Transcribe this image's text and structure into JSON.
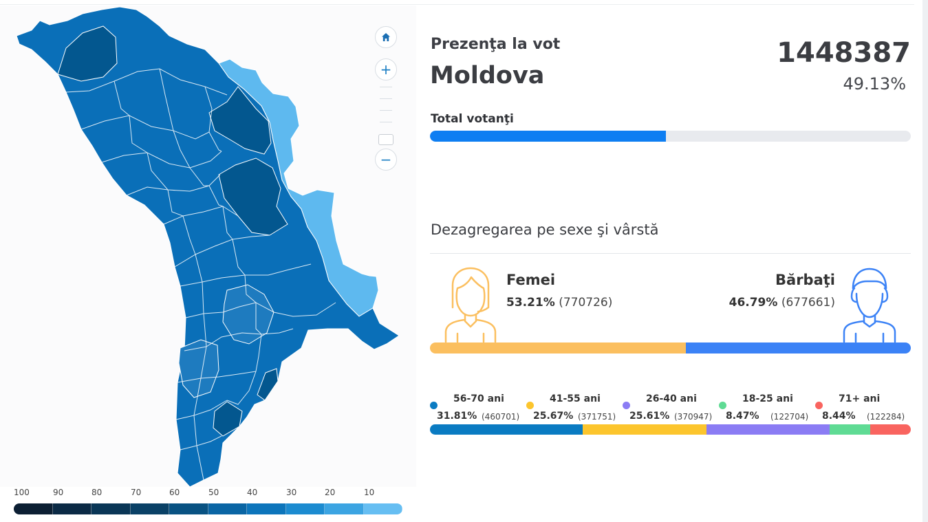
{
  "colors": {
    "accent_blue": "#0e7ef2",
    "female": "#fbbf5f",
    "male": "#3b82f6",
    "map_dark": "#03578f",
    "map_medium": "#0a6fb8",
    "map_light": "#1e7bbf",
    "map_lightest": "#5eb9ef"
  },
  "map": {
    "controls": {
      "home_icon": "home-icon",
      "zoom_in_label": "+",
      "zoom_out_label": "−"
    },
    "legend": {
      "labels": [
        "100",
        "90",
        "80",
        "70",
        "60",
        "50",
        "40",
        "30",
        "20",
        "10"
      ],
      "colors": [
        "#0c1f33",
        "#0b2a45",
        "#0a3656",
        "#0a4166",
        "#095282",
        "#0a65a4",
        "#0d75bb",
        "#1c8bd0",
        "#3ca4e2",
        "#66bef2"
      ]
    }
  },
  "summary": {
    "label": "Prezenţa la vot",
    "region": "Moldova",
    "count": "1448387",
    "percent": "49.13%",
    "total_label": "Total votanţi",
    "total_fraction": 0.4913
  },
  "breakdown": {
    "title": "Dezagregarea pe sexe şi vârstă",
    "female": {
      "icon": "woman-icon",
      "label": "Femei",
      "percent": "53.21%",
      "count": "(770726)",
      "share": 0.5321
    },
    "male": {
      "icon": "man-icon",
      "label": "Bărbaţi",
      "percent": "46.79%",
      "count": "(677661)",
      "share": 0.4679
    },
    "ages": [
      {
        "label": "56-70 ani",
        "percent": "31.81%",
        "count": "(460701)",
        "share": 0.3181,
        "color": "#0a7bc2"
      },
      {
        "label": "41-55 ani",
        "percent": "25.67%",
        "count": "(371751)",
        "share": 0.2567,
        "color": "#fcc52d"
      },
      {
        "label": "26-40 ani",
        "percent": "25.61%",
        "count": "(370947)",
        "share": 0.2561,
        "color": "#8b7cf4"
      },
      {
        "label": "18-25 ani",
        "percent": "8.47%",
        "count": "(122704)",
        "share": 0.0847,
        "color": "#5fdb94"
      },
      {
        "label": "71+ ani",
        "percent": "8.44%",
        "count": "(122284)",
        "share": 0.0844,
        "color": "#f9645f"
      }
    ]
  }
}
